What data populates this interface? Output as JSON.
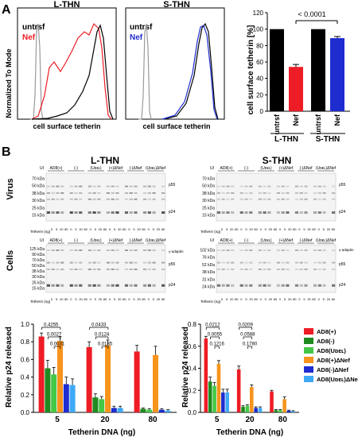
{
  "panel_labels": {
    "a": "A",
    "b": "B"
  },
  "flow": {
    "ylabel": "Normalized To Mode",
    "xlabel": "cell surface tetherin",
    "left": {
      "title": "L-THN",
      "legend": [
        "untrsf",
        "Nef"
      ]
    },
    "right": {
      "title": "S-THN",
      "legend": [
        "untrsf",
        "Nef"
      ]
    }
  },
  "blots": {
    "row_label_virus": "Virus",
    "row_label_cells": "Cells",
    "left_title": "L-THN",
    "right_title": "S-THN",
    "ui": "UI",
    "group_labels": [
      "AD8(+)",
      "(-)",
      "(Uᴅᴇʟ)",
      "(+)ΔNef",
      "(-)ΔNef",
      "(Uᴅᴇʟ)ΔNef"
    ],
    "tetherin_label": "Tetherin (ng)",
    "lane_doses": [
      "0",
      "5",
      "20",
      "80"
    ],
    "virus_kda": [
      "70 kDa",
      "50 kDa",
      "38 kDa",
      "30 kDa",
      "25 kDa",
      "15 kDa"
    ],
    "cells_kda_left": [
      "125 kDa",
      "90 kDa",
      "70 kDa",
      "50 kDa",
      "38 kDa",
      "30 kDa",
      "25 kDa",
      "15 kDa"
    ],
    "cells_kda_right": [
      "102 kDa",
      "76 kDa",
      "52 kDa",
      "38 kDa",
      "31 kDa",
      "24 kDa"
    ],
    "band_labels": {
      "p55": "p55",
      "p24": "p24",
      "gamma": "γ-adaptin"
    }
  },
  "colors": {
    "untrsf": "#000000",
    "nef_left": "#ee1c24",
    "nef_right": "#1f2ccf",
    "grey": "#9a9a9a"
  },
  "chart_data": [
    {
      "type": "bar",
      "ylabel": "cell surface tetherin [%]",
      "categories": [
        "untrsf",
        "Nef",
        "untrsf",
        "Nef"
      ],
      "groups": [
        "L-THN",
        "S-THN"
      ],
      "values": [
        100,
        54,
        100,
        89
      ],
      "errors": [
        0,
        3,
        0,
        2
      ],
      "colors": [
        "#000000",
        "#ee1c24",
        "#000000",
        "#1f2ccf"
      ],
      "ylim": [
        0,
        120
      ],
      "yticks": [
        0,
        20,
        40,
        60,
        80,
        100,
        120
      ],
      "annotation": "< 0.0001"
    },
    {
      "type": "bar",
      "title": "L-THN",
      "xlabel": "Tetherin DNA (ng)",
      "ylabel": "Relative p24 released",
      "categories": [
        "5",
        "20",
        "80"
      ],
      "ylim": [
        0,
        1.0
      ],
      "yticks": [
        "0.0",
        "0.2",
        "0.4",
        "0.6",
        "0.8",
        "1.0"
      ],
      "series": [
        {
          "name": "AD8(+)",
          "color": "#ee1c24",
          "values": [
            0.86,
            0.74,
            0.69
          ],
          "errors": [
            0.04,
            0.06,
            0.07
          ]
        },
        {
          "name": "AD8(-)",
          "color": "#1f8a1f",
          "values": [
            0.5,
            0.17,
            0.04
          ],
          "errors": [
            0.09,
            0.04,
            0.01
          ]
        },
        {
          "name": "AD8(Uᴅᴇʟ)",
          "color": "#45c845",
          "values": [
            0.43,
            0.15,
            0.03
          ],
          "errors": [
            0.08,
            0.03,
            0.01
          ]
        },
        {
          "name": "AD8(+)ΔNef",
          "color": "#f7941d",
          "values": [
            0.81,
            0.76,
            0.65
          ],
          "errors": [
            0.05,
            0.06,
            0.1
          ]
        },
        {
          "name": "AD8(-)ΔNef",
          "color": "#1f2ccf",
          "values": [
            0.32,
            0.05,
            0.03
          ],
          "errors": [
            0.08,
            0.02,
            0.01
          ]
        },
        {
          "name": "AD8(Uᴅᴇʟ)ΔNef",
          "color": "#3fa9f5",
          "values": [
            0.31,
            0.05,
            0.02
          ],
          "errors": [
            0.07,
            0.02,
            0.01
          ]
        }
      ],
      "brackets": [
        {
          "label": "0.4255",
          "cat": 0,
          "from": 0,
          "to": 3
        },
        {
          "label": "0.0027",
          "cat": 0,
          "from": 1,
          "to": 3
        },
        {
          "label": "0.0031",
          "cat": 0,
          "from": 2,
          "to": 3
        },
        {
          "label": "0.0433",
          "cat": 1,
          "from": 0,
          "to": 3
        },
        {
          "label": "0.0124",
          "cat": 1,
          "from": 1,
          "to": 3
        },
        {
          "label": "0.0185",
          "cat": 1,
          "from": 2,
          "to": 3
        }
      ]
    },
    {
      "type": "bar",
      "title": "S-THN",
      "xlabel": "Tetherin DNA (ng)",
      "ylabel": "Relative p24 released",
      "categories": [
        "5",
        "20",
        "80"
      ],
      "ylim": [
        0,
        0.8
      ],
      "yticks": [
        "0.0",
        "0.2",
        "0.4",
        "0.6",
        "0.8"
      ],
      "series": [
        {
          "name": "AD8(+)",
          "color": "#ee1c24",
          "values": [
            0.67,
            0.39,
            0.19
          ],
          "errors": [
            0.02,
            0.03,
            0.01
          ]
        },
        {
          "name": "AD8(-)",
          "color": "#1f8a1f",
          "values": [
            0.28,
            0.05,
            0.02
          ],
          "errors": [
            0.04,
            0.01,
            0.005
          ]
        },
        {
          "name": "AD8(Uᴅᴇʟ)",
          "color": "#45c845",
          "values": [
            0.24,
            0.06,
            0.02
          ],
          "errors": [
            0.03,
            0.01,
            0.005
          ]
        },
        {
          "name": "AD8(+)ΔNef",
          "color": "#f7941d",
          "values": [
            0.44,
            0.23,
            0.12
          ],
          "errors": [
            0.03,
            0.02,
            0.02
          ]
        },
        {
          "name": "AD8(-)ΔNef",
          "color": "#1f2ccf",
          "values": [
            0.18,
            0.04,
            0.015
          ],
          "errors": [
            0.03,
            0.01,
            0.005
          ]
        },
        {
          "name": "AD8(Uᴅᴇʟ)ΔNef",
          "color": "#3fa9f5",
          "values": [
            0.18,
            0.04,
            0.01
          ],
          "errors": [
            0.03,
            0.01,
            0.005
          ]
        }
      ],
      "brackets": [
        {
          "label": "0.0212",
          "cat": 0,
          "from": 0,
          "to": 3
        },
        {
          "label": "0.0055",
          "cat": 0,
          "from": 1,
          "to": 3
        },
        {
          "label": "0.1216",
          "cat": 0,
          "from": 2,
          "to": 3
        },
        {
          "label": "0.0209",
          "cat": 1,
          "from": 0,
          "to": 3
        },
        {
          "label": "0.0588",
          "cat": 1,
          "from": 1,
          "to": 3
        },
        {
          "label": "0.1780",
          "cat": 1,
          "from": 2,
          "to": 3
        }
      ]
    }
  ]
}
